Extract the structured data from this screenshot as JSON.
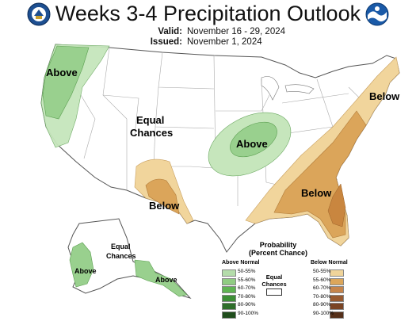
{
  "header": {
    "title": "Weeks 3-4 Precipitation Outlook",
    "valid_label": "Valid:",
    "valid_value": "November 16 - 29, 2024",
    "issued_label": "Issued:",
    "issued_value": "November 1, 2024"
  },
  "map_labels": {
    "west_above": "Above",
    "equal_chances_line1": "Equal",
    "equal_chances_line2": "Chances",
    "central_above": "Above",
    "southwest_below": "Below",
    "southeast_below": "Below",
    "northeast_below": "Below",
    "alaska_equal_line1": "Equal",
    "alaska_equal_line2": "Chances",
    "alaska_above_west": "Above",
    "alaska_above_southeast": "Above"
  },
  "legend": {
    "title_line1": "Probability",
    "title_line2": "(Percent Chance)",
    "above_header": "Above Normal",
    "below_header": "Below Normal",
    "equal_line1": "Equal",
    "equal_line2": "Chances",
    "above": [
      {
        "label": "50-55%",
        "color": "#b4dcaa"
      },
      {
        "label": "55-60%",
        "color": "#90cc82"
      },
      {
        "label": "60-70%",
        "color": "#5fb452"
      },
      {
        "label": "70-80%",
        "color": "#3d8f36"
      },
      {
        "label": "80-90%",
        "color": "#2e6e2a"
      },
      {
        "label": "90-100%",
        "color": "#1f4d1c"
      }
    ],
    "below": [
      {
        "label": "50-55%",
        "color": "#f0d49a"
      },
      {
        "label": "55-60%",
        "color": "#dca65a"
      },
      {
        "label": "60-70%",
        "color": "#c6844a"
      },
      {
        "label": "70-80%",
        "color": "#985a30"
      },
      {
        "label": "80-90%",
        "color": "#7a4424"
      },
      {
        "label": "90-100%",
        "color": "#55301a"
      }
    ]
  },
  "colors": {
    "above_light": "#c6e6bc",
    "above_mid": "#99d08e",
    "below_light": "#f1d59c",
    "below_mid": "#dba55a",
    "below_dark": "#c9863f"
  }
}
